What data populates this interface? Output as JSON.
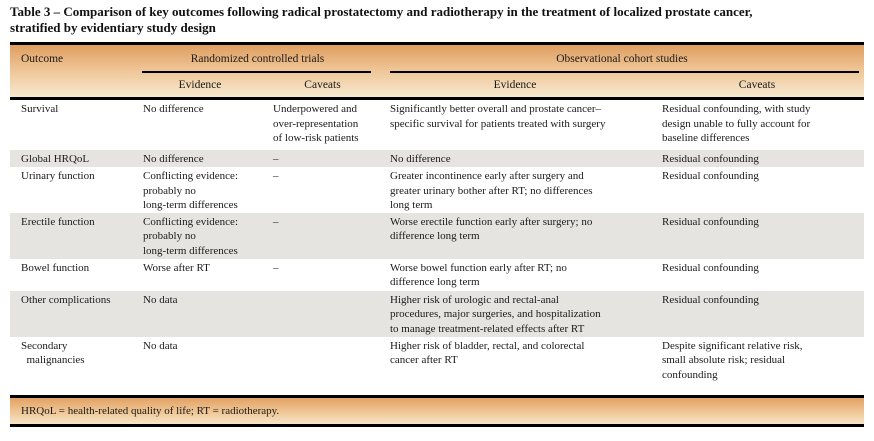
{
  "title": "Table 3 – Comparison of key outcomes following radical prostatectomy and radiotherapy in the treatment of localized prostate cancer,\nstratified by evidentiary study design",
  "table": {
    "outcome_header": "Outcome",
    "group_headers": {
      "rct": "Randomized controlled trials",
      "obs": "Observational cohort studies"
    },
    "sub_headers": [
      "Evidence",
      "Caveats",
      "Evidence",
      "Caveats"
    ],
    "rows": [
      {
        "outcome": "Survival",
        "rct_evidence": "No difference",
        "rct_caveats": "Underpowered and\nover-representation\nof low-risk patients",
        "obs_evidence": "Significantly better overall and prostate cancer–\nspecific survival for patients treated with surgery",
        "obs_caveats": "Residual confounding, with study\ndesign unable to fully account for\nbaseline differences"
      },
      {
        "outcome": "Global HRQoL",
        "rct_evidence": "No difference",
        "rct_caveats": "–",
        "obs_evidence": "No difference",
        "obs_caveats": "Residual confounding"
      },
      {
        "outcome": "Urinary function",
        "rct_evidence": "Conflicting evidence:\nprobably no\nlong-term differences",
        "rct_caveats": "–",
        "obs_evidence": "Greater incontinence early after surgery and\ngreater urinary bother after RT; no differences\nlong term",
        "obs_caveats": "Residual confounding"
      },
      {
        "outcome": "Erectile function",
        "rct_evidence": "Conflicting evidence:\nprobably no\nlong-term differences",
        "rct_caveats": "–",
        "obs_evidence": "Worse erectile function early after surgery; no\ndifference long term",
        "obs_caveats": "Residual confounding"
      },
      {
        "outcome": "Bowel function",
        "rct_evidence": "Worse after RT",
        "rct_caveats": "–",
        "obs_evidence": "Worse bowel function early after RT; no\ndifference long term",
        "obs_caveats": "Residual confounding"
      },
      {
        "outcome": "Other complications",
        "rct_evidence": "No data",
        "rct_caveats": "",
        "obs_evidence": "Higher risk of urologic and rectal-anal\nprocedures, major surgeries, and hospitalization\nto manage treatment-related effects after RT",
        "obs_caveats": "Residual confounding"
      },
      {
        "outcome": "Secondary\n  malignancies",
        "rct_evidence": "No data",
        "rct_caveats": "",
        "obs_evidence": "Higher risk of bladder, rectal, and colorectal\ncancer after RT",
        "obs_caveats": "Despite significant relative risk,\nsmall absolute risk; residual\nconfounding"
      }
    ],
    "footnote": "HRQoL = health-related quality of life; RT = radiotherapy."
  },
  "colors": {
    "band_gradient_top": "#df9e61",
    "band_gradient_bottom": "#f7e9d0",
    "row_shade": "#e5e4e1",
    "rule": "#000000",
    "text": "#1a1a1a"
  }
}
